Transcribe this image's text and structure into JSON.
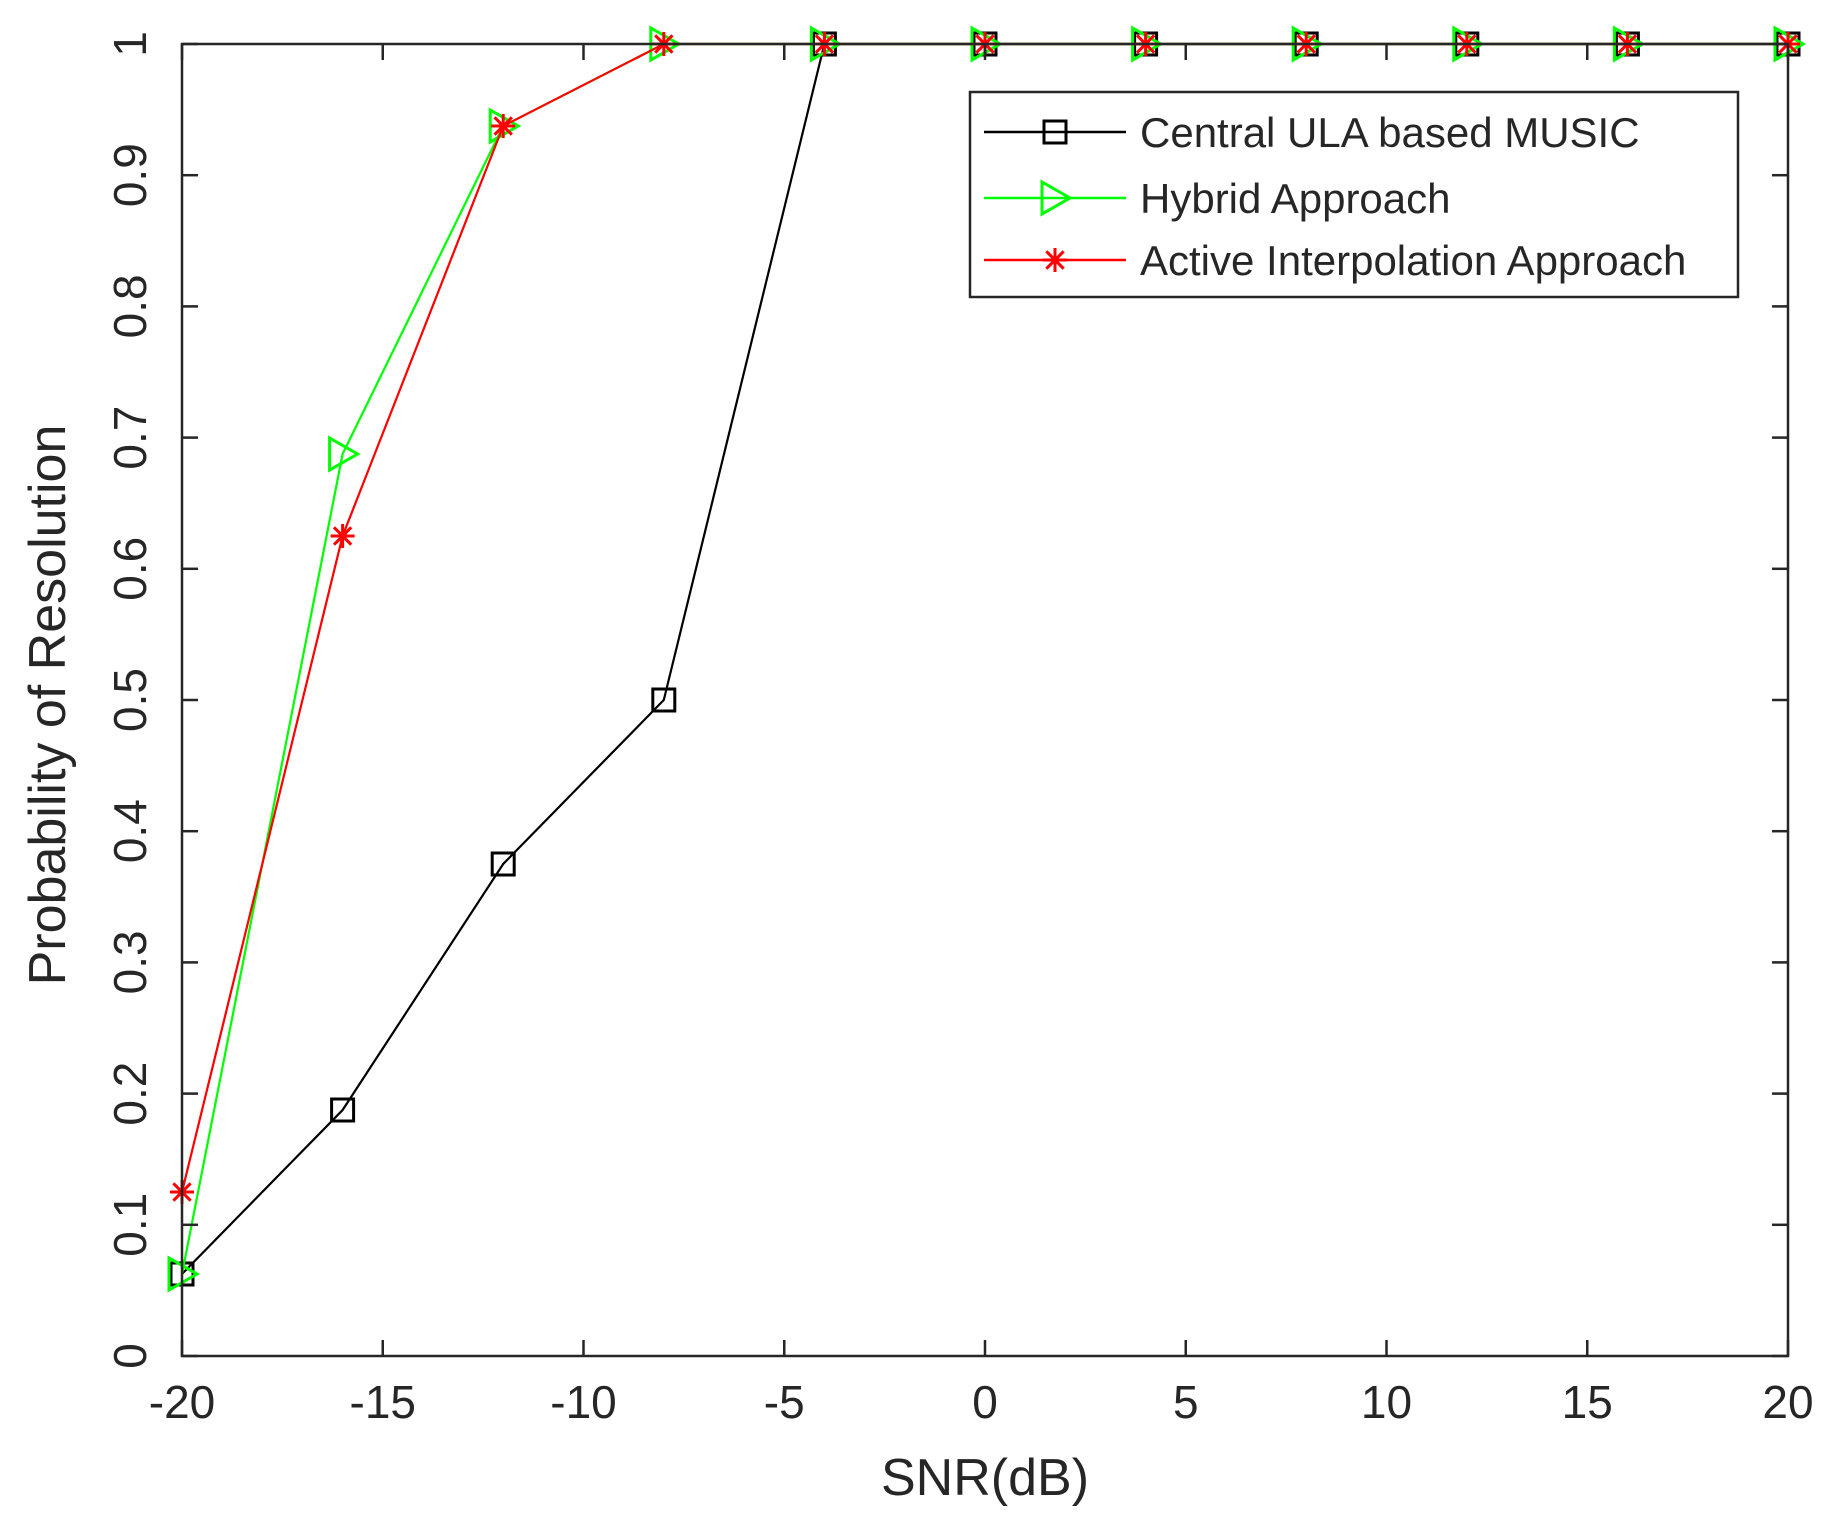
{
  "chart_data": {
    "type": "line",
    "xlabel": "SNR(dB)",
    "ylabel": "Probability of Resolution",
    "xlim": [
      -20,
      20
    ],
    "ylim": [
      0,
      1
    ],
    "xticks": [
      -20,
      -15,
      -10,
      -5,
      0,
      5,
      10,
      15,
      20
    ],
    "xtick_labels": [
      "-20",
      "-15",
      "-10",
      "-5",
      "0",
      "5",
      "10",
      "15",
      "20"
    ],
    "yticks": [
      0,
      0.1,
      0.2,
      0.3,
      0.4,
      0.5,
      0.6,
      0.7,
      0.8,
      0.9,
      1
    ],
    "ytick_labels": [
      "0",
      "0.1",
      "0.2",
      "0.3",
      "0.4",
      "0.5",
      "0.6",
      "0.7",
      "0.8",
      "0.9",
      "1"
    ],
    "grid": false,
    "legend_position": "top-right",
    "x": [
      -20,
      -16,
      -12,
      -8,
      -4,
      0,
      4,
      8,
      12,
      16,
      20
    ],
    "series": [
      {
        "name": "Central ULA based MUSIC",
        "color": "#000000",
        "marker": "square",
        "values": [
          0.0625,
          0.1875,
          0.375,
          0.5,
          1,
          1,
          1,
          1,
          1,
          1,
          1
        ]
      },
      {
        "name": "Hybrid Approach",
        "color": "#00ff00",
        "marker": "triangle-right",
        "values": [
          0.0625,
          0.6875,
          0.9375,
          1,
          1,
          1,
          1,
          1,
          1,
          1,
          1
        ]
      },
      {
        "name": "Active Interpolation Approach",
        "color": "#ff0000",
        "marker": "asterisk",
        "values": [
          0.125,
          0.625,
          0.9375,
          1,
          1,
          1,
          1,
          1,
          1,
          1,
          1
        ]
      }
    ]
  }
}
